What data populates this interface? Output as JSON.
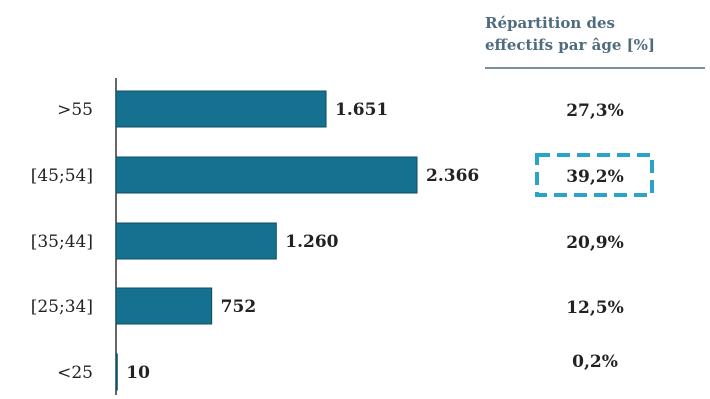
{
  "chart_data": {
    "type": "bar",
    "orientation": "horizontal",
    "categories": [
      ">55",
      "[45;54]",
      "[35;44]",
      "[25;34]",
      "<25"
    ],
    "values": [
      1651,
      2366,
      1260,
      752,
      10
    ],
    "value_labels": [
      "1.651",
      "2.366",
      "1.260",
      "752",
      "10"
    ],
    "bar_color": "#15718f",
    "share_panel": {
      "title": "Répartition des effectifs par âge [%]",
      "title_lines": [
        "Répartition des",
        "effectifs par âge [%]"
      ],
      "title_color": "#4f6c7e",
      "values": [
        "27,3%",
        "39,2%",
        "20,9%",
        "12,5%",
        "0,2%"
      ],
      "highlight_index": 1,
      "highlight_color": "#29a3cc"
    },
    "grid": false
  }
}
